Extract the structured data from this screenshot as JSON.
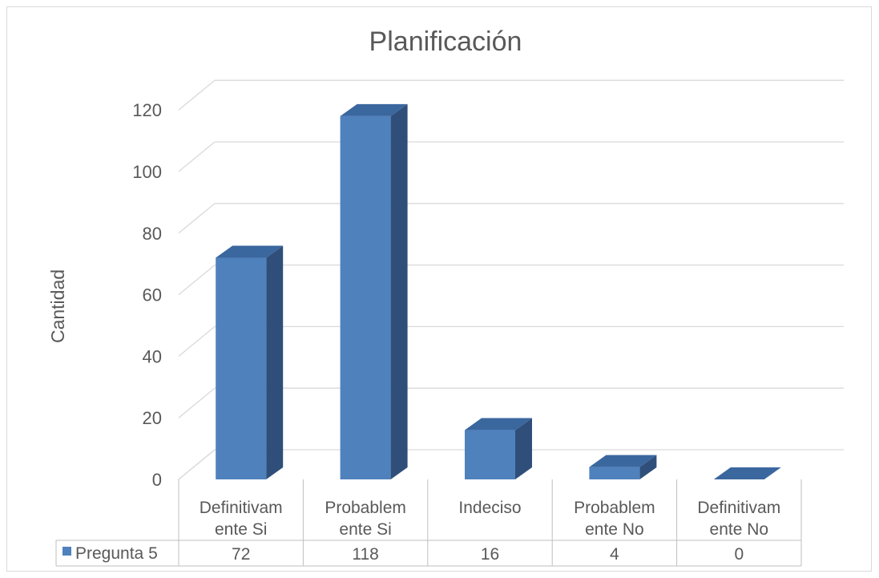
{
  "colors": {
    "bar_front": "#4f81bd",
    "bar_side": "#2f4f7a",
    "bar_top": "#3b679f",
    "text": "#595959",
    "grid": "#d9d9d9"
  },
  "chart_data": {
    "type": "bar",
    "title": "Planificación",
    "ylabel": "Cantidad",
    "xlabel": "",
    "categories": [
      [
        "Definitivam",
        "ente Si"
      ],
      [
        "Probablem",
        "ente Si"
      ],
      [
        "Indeciso"
      ],
      [
        "Probablem",
        "ente No"
      ],
      [
        "Definitivam",
        "ente No"
      ]
    ],
    "series": [
      {
        "name": "Pregunta 5",
        "values": [
          72,
          118,
          16,
          4,
          0
        ],
        "labels": [
          "72",
          "118",
          "16",
          "4",
          "0"
        ]
      }
    ],
    "ylim": [
      0,
      120
    ],
    "yticks": [
      0,
      20,
      40,
      60,
      80,
      100,
      120
    ],
    "ytick_labels": [
      "0",
      "20",
      "40",
      "60",
      "80",
      "100",
      "120"
    ],
    "grid": true,
    "style": "3d-column",
    "legend": "data-table"
  }
}
